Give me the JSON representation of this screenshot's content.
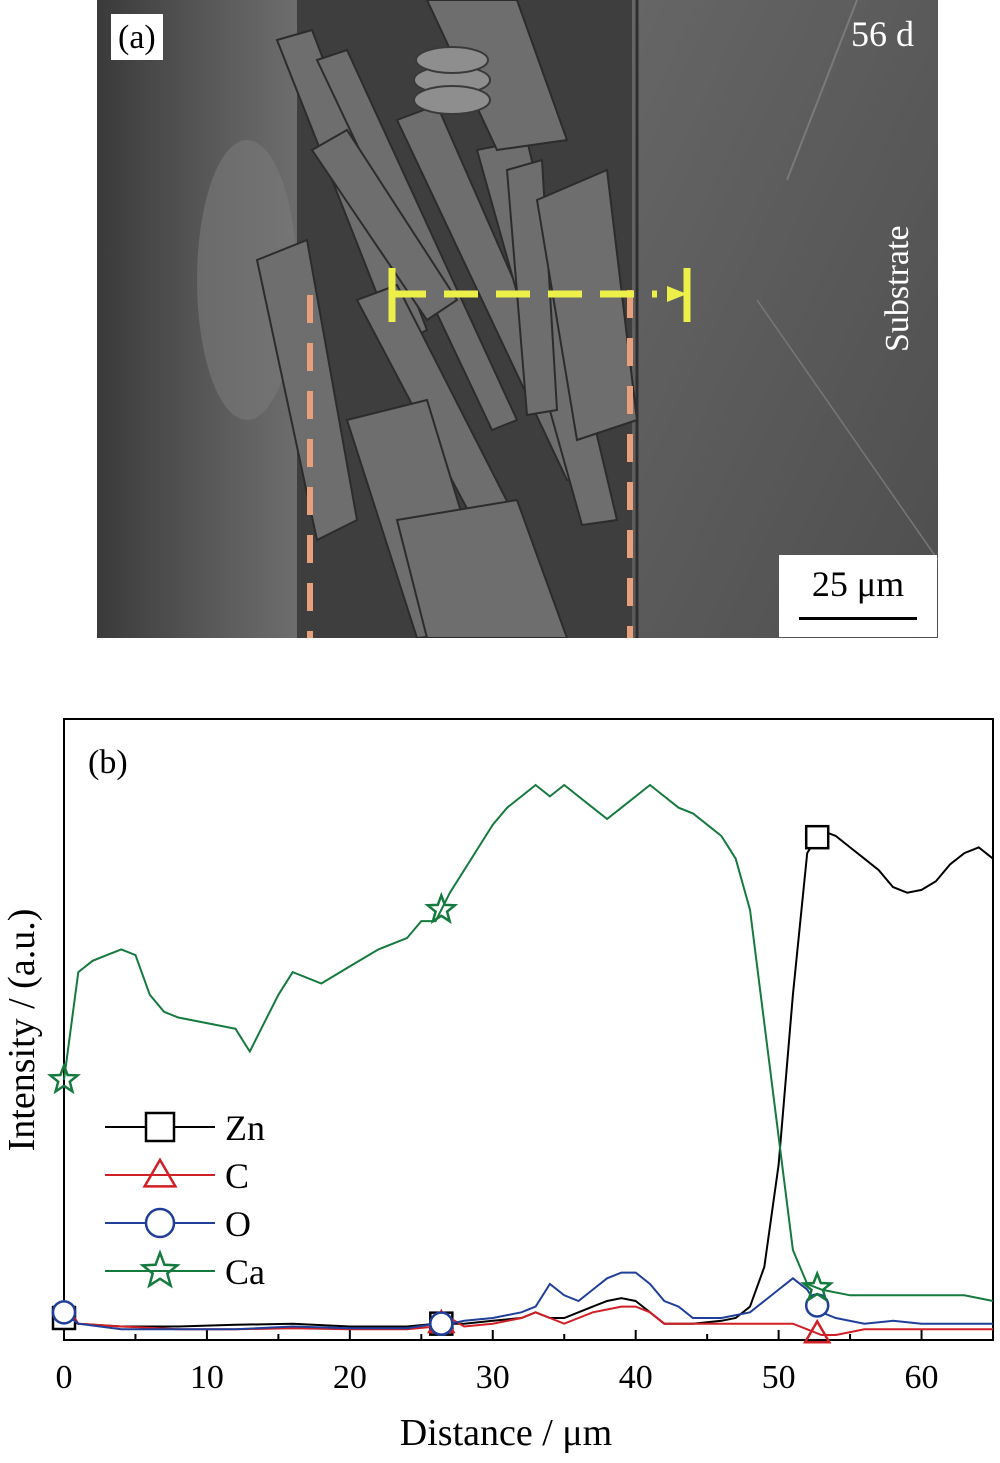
{
  "panel_a": {
    "label": "(a)",
    "time": "56 d",
    "substrate": "Substrate",
    "scale_bar": "25 μm"
  },
  "colors": {
    "zn": "#000000",
    "c": "#d11f26",
    "o": "#1f3f9a",
    "ca": "#157a3e",
    "dashed_boundary": "#e8a07a",
    "scan_line": "#eef04a"
  },
  "chart_data": {
    "type": "line",
    "panel_label": "(b)",
    "xlabel": "Distance / μm",
    "ylabel": "Intensity / (a.u.)",
    "xlim": [
      0,
      65
    ],
    "ylim": [
      0,
      100
    ],
    "xticks": [
      0,
      10,
      20,
      30,
      40,
      50,
      60
    ],
    "grid": false,
    "legend_position": "left-bottom",
    "series": [
      {
        "name": "Zn",
        "marker": "square",
        "points": [
          [
            0,
            3
          ],
          [
            1,
            2
          ],
          [
            4,
            1.5
          ],
          [
            8,
            1.5
          ],
          [
            12,
            1.8
          ],
          [
            16,
            2
          ],
          [
            20,
            1.5
          ],
          [
            24,
            1.5
          ],
          [
            26,
            2
          ],
          [
            28,
            2
          ],
          [
            30,
            2.5
          ],
          [
            32,
            3
          ],
          [
            33,
            4
          ],
          [
            34,
            3
          ],
          [
            35,
            3
          ],
          [
            36,
            4
          ],
          [
            37,
            5
          ],
          [
            38,
            6
          ],
          [
            39,
            6.5
          ],
          [
            40,
            6
          ],
          [
            41,
            4
          ],
          [
            42,
            2
          ],
          [
            44,
            2
          ],
          [
            46,
            2.5
          ],
          [
            47,
            3
          ],
          [
            48,
            5
          ],
          [
            49,
            12
          ],
          [
            50,
            30
          ],
          [
            51,
            60
          ],
          [
            52,
            85
          ],
          [
            53,
            89
          ],
          [
            54,
            88
          ],
          [
            55,
            86
          ],
          [
            56,
            84
          ],
          [
            57,
            82
          ],
          [
            58,
            79
          ],
          [
            59,
            78
          ],
          [
            60,
            78.5
          ],
          [
            61,
            80
          ],
          [
            62,
            83
          ],
          [
            63,
            85
          ],
          [
            64,
            86
          ],
          [
            65,
            84
          ]
        ],
        "marker_x": [
          0,
          26.4,
          52.7
        ]
      },
      {
        "name": "C",
        "marker": "triangle",
        "points": [
          [
            0,
            6
          ],
          [
            1,
            2
          ],
          [
            4,
            1.5
          ],
          [
            8,
            1
          ],
          [
            12,
            1
          ],
          [
            16,
            1.2
          ],
          [
            20,
            1
          ],
          [
            24,
            1
          ],
          [
            26,
            1.5
          ],
          [
            27,
            3
          ],
          [
            28,
            1.5
          ],
          [
            30,
            2
          ],
          [
            32,
            3
          ],
          [
            33,
            4
          ],
          [
            34,
            3
          ],
          [
            35,
            2
          ],
          [
            36,
            3
          ],
          [
            37,
            4
          ],
          [
            38,
            4.5
          ],
          [
            39,
            5
          ],
          [
            40,
            5
          ],
          [
            41,
            4
          ],
          [
            42,
            2
          ],
          [
            44,
            2
          ],
          [
            46,
            2
          ],
          [
            48,
            2
          ],
          [
            50,
            2
          ],
          [
            51,
            2
          ],
          [
            52,
            1
          ],
          [
            53,
            0
          ],
          [
            54,
            0
          ],
          [
            56,
            1
          ],
          [
            58,
            1
          ],
          [
            60,
            1
          ],
          [
            62,
            1
          ],
          [
            64,
            1
          ],
          [
            65,
            1
          ]
        ],
        "marker_x": [
          26.4,
          52.7
        ]
      },
      {
        "name": "O",
        "marker": "circle",
        "points": [
          [
            0,
            4
          ],
          [
            1,
            2
          ],
          [
            4,
            1
          ],
          [
            8,
            1
          ],
          [
            12,
            1
          ],
          [
            16,
            1.5
          ],
          [
            20,
            1.2
          ],
          [
            24,
            1.2
          ],
          [
            26,
            2
          ],
          [
            27,
            2
          ],
          [
            28,
            2.5
          ],
          [
            30,
            3
          ],
          [
            32,
            4
          ],
          [
            33,
            5
          ],
          [
            34,
            9
          ],
          [
            35,
            7
          ],
          [
            36,
            6
          ],
          [
            37,
            8
          ],
          [
            38,
            10
          ],
          [
            39,
            11
          ],
          [
            40,
            11
          ],
          [
            41,
            9
          ],
          [
            42,
            6
          ],
          [
            43,
            5
          ],
          [
            44,
            3
          ],
          [
            46,
            3
          ],
          [
            48,
            4
          ],
          [
            49,
            6
          ],
          [
            50,
            8
          ],
          [
            51,
            10
          ],
          [
            52,
            8
          ],
          [
            53,
            4
          ],
          [
            54,
            3
          ],
          [
            56,
            2
          ],
          [
            58,
            2.5
          ],
          [
            60,
            2
          ],
          [
            62,
            2
          ],
          [
            64,
            2
          ],
          [
            65,
            2
          ]
        ],
        "marker_x": [
          0,
          26.4,
          52.7
        ]
      },
      {
        "name": "Ca",
        "marker": "star",
        "points": [
          [
            0,
            45
          ],
          [
            1,
            64
          ],
          [
            2,
            66
          ],
          [
            3,
            67
          ],
          [
            4,
            68
          ],
          [
            5,
            67
          ],
          [
            6,
            60
          ],
          [
            7,
            57
          ],
          [
            8,
            56
          ],
          [
            10,
            55
          ],
          [
            12,
            54
          ],
          [
            13,
            50
          ],
          [
            14,
            55
          ],
          [
            15,
            60
          ],
          [
            16,
            64
          ],
          [
            18,
            62
          ],
          [
            20,
            65
          ],
          [
            22,
            68
          ],
          [
            24,
            70
          ],
          [
            25,
            73
          ],
          [
            26,
            73
          ],
          [
            27,
            78
          ],
          [
            28,
            82
          ],
          [
            29,
            86
          ],
          [
            30,
            90
          ],
          [
            31,
            93
          ],
          [
            32,
            95
          ],
          [
            33,
            97
          ],
          [
            34,
            95
          ],
          [
            35,
            97
          ],
          [
            36,
            95
          ],
          [
            37,
            93
          ],
          [
            38,
            91
          ],
          [
            39,
            93
          ],
          [
            40,
            95
          ],
          [
            41,
            97
          ],
          [
            42,
            95
          ],
          [
            43,
            93
          ],
          [
            44,
            92
          ],
          [
            45,
            90
          ],
          [
            46,
            88
          ],
          [
            47,
            84
          ],
          [
            48,
            75
          ],
          [
            49,
            55
          ],
          [
            50,
            35
          ],
          [
            51,
            15
          ],
          [
            52,
            9
          ],
          [
            53,
            8
          ],
          [
            55,
            7
          ],
          [
            57,
            7
          ],
          [
            59,
            7
          ],
          [
            61,
            7
          ],
          [
            63,
            7
          ],
          [
            65,
            6
          ]
        ],
        "marker_x": [
          0,
          26.4,
          52.7
        ]
      }
    ]
  }
}
